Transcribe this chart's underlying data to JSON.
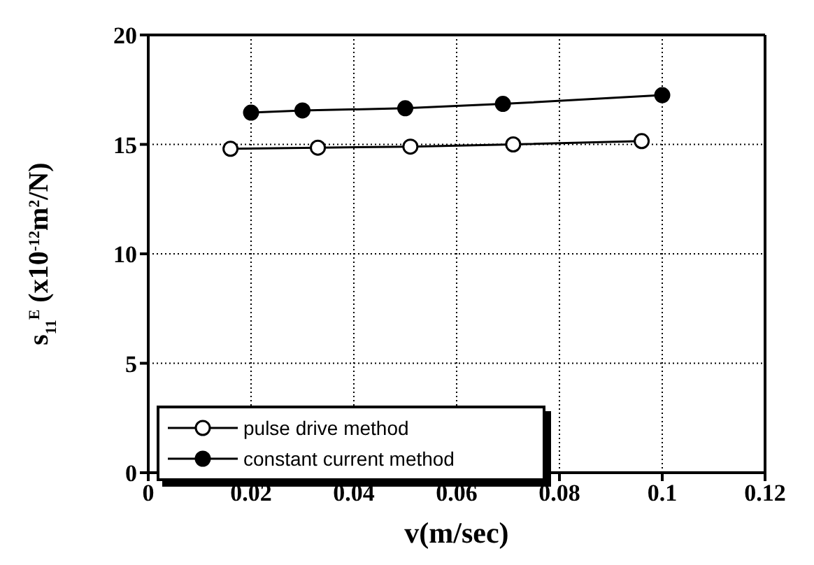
{
  "chart_data": {
    "type": "line",
    "xlabel": "v(m/sec)",
    "ylabel": "s$_{11}$$^{E}$ (x10$^{-12}$m$^{2}$/N)",
    "series": [
      {
        "name": "pulse drive method",
        "color": "#000000",
        "x": [
          0.016,
          0.033,
          0.051,
          0.071,
          0.096
        ],
        "values": [
          14.8,
          14.85,
          14.9,
          15.0,
          15.15
        ]
      },
      {
        "name": "constant current method",
        "color": "#000000",
        "x": [
          0.02,
          0.03,
          0.05,
          0.069,
          0.1
        ],
        "values": [
          16.45,
          16.55,
          16.65,
          16.85,
          17.25
        ]
      }
    ],
    "xlim": [
      0,
      0.12
    ],
    "xticks": [
      0,
      0.02,
      0.04,
      0.06,
      0.08,
      0.1,
      0.12
    ],
    "ylim": [
      0,
      20
    ],
    "yticks": [
      0,
      5,
      10,
      15,
      20
    ],
    "grid": true,
    "legend": "bottom left",
    "marker": "circle",
    "line_style": "solid"
  }
}
